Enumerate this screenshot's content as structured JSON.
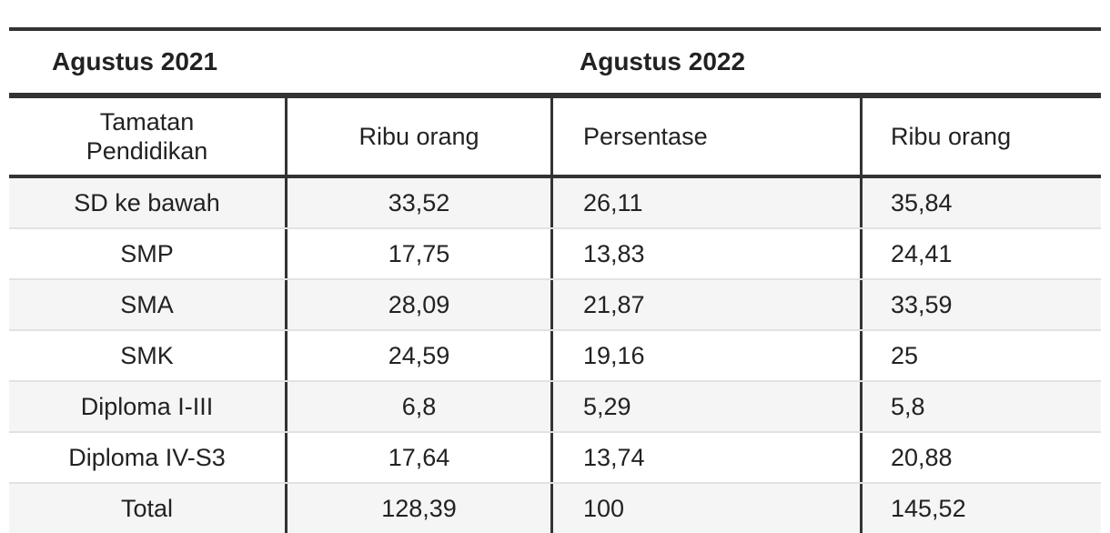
{
  "table": {
    "group_headers": {
      "left": "Agustus 2021",
      "right": "Agustus 2022"
    },
    "columns": {
      "education_line1": "Tamatan",
      "education_line2": "Pendidikan",
      "col2": "Ribu orang",
      "col3": "Persentase",
      "col4": "Ribu orang"
    },
    "rows": [
      {
        "education": "SD ke bawah",
        "col2": "33,52",
        "col3": "26,11",
        "col4": "35,84"
      },
      {
        "education": "SMP",
        "col2": "17,75",
        "col3": "13,83",
        "col4": "24,41"
      },
      {
        "education": "SMA",
        "col2": "28,09",
        "col3": "21,87",
        "col4": "33,59"
      },
      {
        "education": "SMK",
        "col2": "24,59",
        "col3": "19,16",
        "col4": "25"
      },
      {
        "education": "Diploma I-III",
        "col2": "6,8",
        "col3": "5,29",
        "col4": "5,8"
      },
      {
        "education": "Diploma IV-S3",
        "col2": "17,64",
        "col3": "13,74",
        "col4": "20,88"
      },
      {
        "education": "Total",
        "col2": "128,39",
        "col3": "100",
        "col4": "145,52"
      }
    ]
  }
}
